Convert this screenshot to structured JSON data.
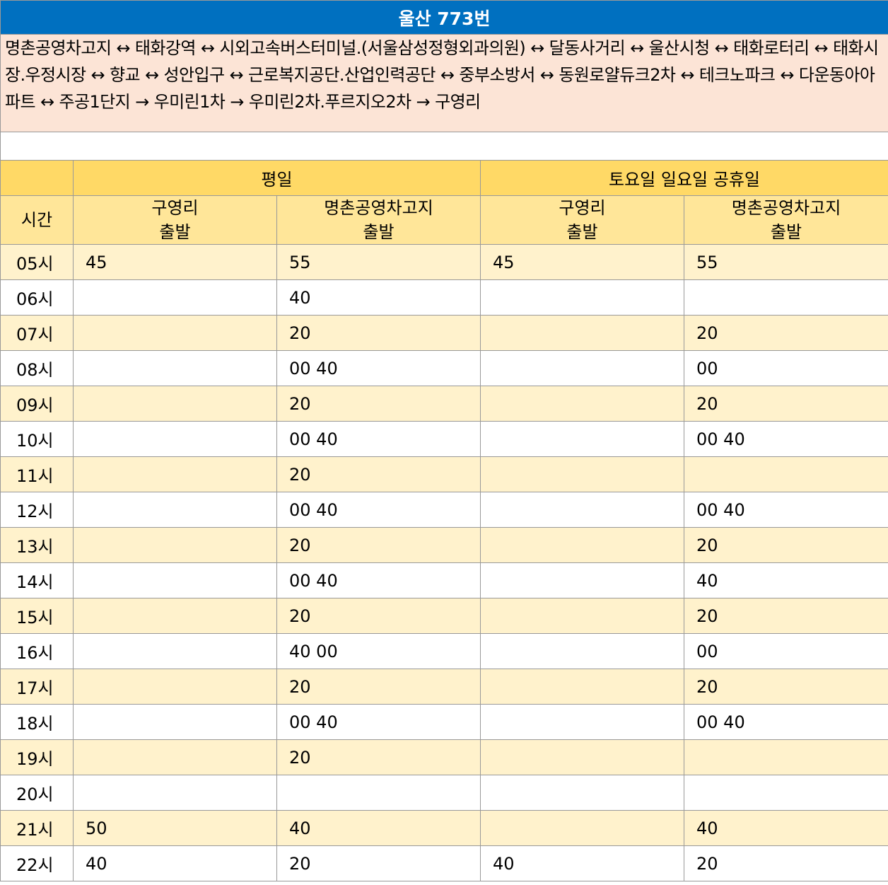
{
  "title": "울산 773번",
  "route": "명촌공영차고지 ↔ 태화강역 ↔ 시외고속버스터미널.(서울삼성정형외과의원) ↔ 달동사거리 ↔ 울산시청 ↔ 태화로터리 ↔ 태화시장.우정시장 ↔ 향교 ↔ 성안입구 ↔ 근로복지공단.산업인력공단 ↔ 중부소방서 ↔ 동원로얄듀크2차 ↔ 테크노파크 ↔ 다운동아아파트 ↔ 주공1단지 → 우미린1차 → 우미린2차.푸르지오2차 → 구영리",
  "headers": {
    "weekday": "평일",
    "weekend": "토요일 일요일 공휴일",
    "hour": "시간",
    "col1_line1": "구영리",
    "col1_line2": "출발",
    "col2_line1": "명촌공영차고지",
    "col2_line2": "출발",
    "col3_line1": "구영리",
    "col3_line2": "출발",
    "col4_line1": "명촌공영차고지",
    "col4_line2": "출발"
  },
  "rows": [
    {
      "hour": "05시",
      "wk_guyeong": "45",
      "wk_myeongchon": "55",
      "we_guyeong": "45",
      "we_myeongchon": "55"
    },
    {
      "hour": "06시",
      "wk_guyeong": "",
      "wk_myeongchon": "40",
      "we_guyeong": "",
      "we_myeongchon": ""
    },
    {
      "hour": "07시",
      "wk_guyeong": "",
      "wk_myeongchon": "20",
      "we_guyeong": "",
      "we_myeongchon": "20"
    },
    {
      "hour": "08시",
      "wk_guyeong": "",
      "wk_myeongchon": "00 40",
      "we_guyeong": "",
      "we_myeongchon": "00"
    },
    {
      "hour": "09시",
      "wk_guyeong": "",
      "wk_myeongchon": "20",
      "we_guyeong": "",
      "we_myeongchon": "20"
    },
    {
      "hour": "10시",
      "wk_guyeong": "",
      "wk_myeongchon": "00 40",
      "we_guyeong": "",
      "we_myeongchon": "00 40"
    },
    {
      "hour": "11시",
      "wk_guyeong": "",
      "wk_myeongchon": "20",
      "we_guyeong": "",
      "we_myeongchon": ""
    },
    {
      "hour": "12시",
      "wk_guyeong": "",
      "wk_myeongchon": "00 40",
      "we_guyeong": "",
      "we_myeongchon": "00 40"
    },
    {
      "hour": "13시",
      "wk_guyeong": "",
      "wk_myeongchon": "20",
      "we_guyeong": "",
      "we_myeongchon": "20"
    },
    {
      "hour": "14시",
      "wk_guyeong": "",
      "wk_myeongchon": "00 40",
      "we_guyeong": "",
      "we_myeongchon": "40"
    },
    {
      "hour": "15시",
      "wk_guyeong": "",
      "wk_myeongchon": "20",
      "we_guyeong": "",
      "we_myeongchon": "20"
    },
    {
      "hour": "16시",
      "wk_guyeong": "",
      "wk_myeongchon": "40 00",
      "we_guyeong": "",
      "we_myeongchon": "00"
    },
    {
      "hour": "17시",
      "wk_guyeong": "",
      "wk_myeongchon": "20",
      "we_guyeong": "",
      "we_myeongchon": "20"
    },
    {
      "hour": "18시",
      "wk_guyeong": "",
      "wk_myeongchon": "00 40",
      "we_guyeong": "",
      "we_myeongchon": "00 40"
    },
    {
      "hour": "19시",
      "wk_guyeong": "",
      "wk_myeongchon": "20",
      "we_guyeong": "",
      "we_myeongchon": ""
    },
    {
      "hour": "20시",
      "wk_guyeong": "",
      "wk_myeongchon": "",
      "we_guyeong": "",
      "we_myeongchon": ""
    },
    {
      "hour": "21시",
      "wk_guyeong": "50",
      "wk_myeongchon": "40",
      "we_guyeong": "",
      "we_myeongchon": "40"
    },
    {
      "hour": "22시",
      "wk_guyeong": "40",
      "wk_myeongchon": "20",
      "we_guyeong": "40",
      "we_myeongchon": "20"
    }
  ]
}
